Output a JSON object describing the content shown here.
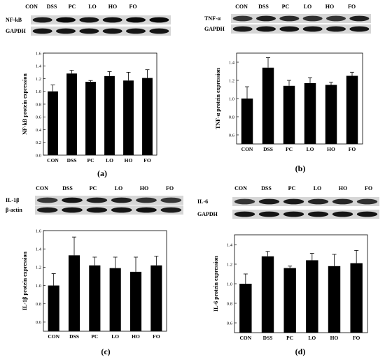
{
  "lanes": [
    "CON",
    "DSS",
    "PC",
    "LO",
    "HO",
    "FO"
  ],
  "panels": [
    {
      "id": "a",
      "letter": "(a)",
      "blot_labels": [
        "NF-kB",
        "GAPDH"
      ],
      "band_intensity": [
        [
          0.85,
          1.0,
          0.9,
          0.95,
          1.0,
          1.0
        ],
        [
          0.9,
          0.9,
          0.9,
          0.9,
          0.9,
          0.9
        ]
      ]
    },
    {
      "id": "b",
      "letter": "(b)",
      "blot_labels": [
        "TNF-α",
        "GAPDH"
      ],
      "band_intensity": [
        [
          0.6,
          0.8,
          0.7,
          0.65,
          0.6,
          0.8
        ],
        [
          0.85,
          0.9,
          0.9,
          0.9,
          0.85,
          0.9
        ]
      ]
    },
    {
      "id": "c",
      "letter": "(c)",
      "blot_labels": [
        "IL-1β",
        "β-actin"
      ],
      "band_intensity": [
        [
          0.6,
          0.9,
          0.8,
          0.8,
          0.65,
          0.6
        ],
        [
          0.85,
          0.9,
          0.9,
          0.9,
          0.95,
          0.85
        ]
      ]
    },
    {
      "id": "d",
      "letter": "(d)",
      "blot_labels": [
        "IL-6",
        "GAPDH"
      ],
      "band_intensity": [
        [
          0.6,
          0.85,
          0.85,
          0.75,
          0.75,
          0.65
        ],
        [
          0.9,
          0.9,
          0.9,
          0.9,
          0.9,
          0.9
        ]
      ]
    }
  ],
  "chart_data": [
    {
      "type": "bar",
      "categories": [
        "CON",
        "DSS",
        "PC",
        "LO",
        "HO",
        "FO"
      ],
      "values": [
        1.0,
        1.28,
        1.15,
        1.24,
        1.17,
        1.21
      ],
      "errors": [
        0.1,
        0.05,
        0.02,
        0.07,
        0.13,
        0.13
      ],
      "ylabel": "NF-kB protein expression",
      "ylim": [
        0.0,
        1.6
      ],
      "yticks": [
        "0.0",
        "0.2",
        "0.4",
        "0.6",
        "0.8",
        "1.0",
        "1.2",
        "1.4",
        "1.6"
      ],
      "grid": false
    },
    {
      "type": "bar",
      "categories": [
        "CON",
        "DSS",
        "PC",
        "LO",
        "HO",
        "FO"
      ],
      "values": [
        1.0,
        1.34,
        1.14,
        1.17,
        1.15,
        1.25
      ],
      "errors": [
        0.13,
        0.11,
        0.06,
        0.06,
        0.03,
        0.04
      ],
      "ylabel": "TNF-α protein expression",
      "ylim": [
        0.5,
        1.5
      ],
      "yticks": [
        "0.6",
        "0.8",
        "1.0",
        "1.2",
        "1.4"
      ],
      "grid": false
    },
    {
      "type": "bar",
      "categories": [
        "CON",
        "DSS",
        "PC",
        "LO",
        "HO",
        "FO"
      ],
      "values": [
        1.0,
        1.33,
        1.22,
        1.19,
        1.15,
        1.22
      ],
      "errors": [
        0.13,
        0.2,
        0.09,
        0.12,
        0.16,
        0.1
      ],
      "ylabel": "IL-1β protein expression",
      "ylim": [
        0.5,
        1.6
      ],
      "yticks": [
        "0.6",
        "0.8",
        "1.0",
        "1.2",
        "1.4",
        "1.6"
      ],
      "grid": false
    },
    {
      "type": "bar",
      "categories": [
        "CON",
        "DSS",
        "PC",
        "LO",
        "HO",
        "FO"
      ],
      "values": [
        1.0,
        1.28,
        1.16,
        1.24,
        1.18,
        1.21
      ],
      "errors": [
        0.1,
        0.05,
        0.02,
        0.07,
        0.12,
        0.13
      ],
      "ylabel": "IL-6 protein expression",
      "ylim": [
        0.5,
        1.5
      ],
      "yticks": [
        "0.6",
        "0.8",
        "1.0",
        "1.2",
        "1.4"
      ],
      "grid": false
    }
  ]
}
